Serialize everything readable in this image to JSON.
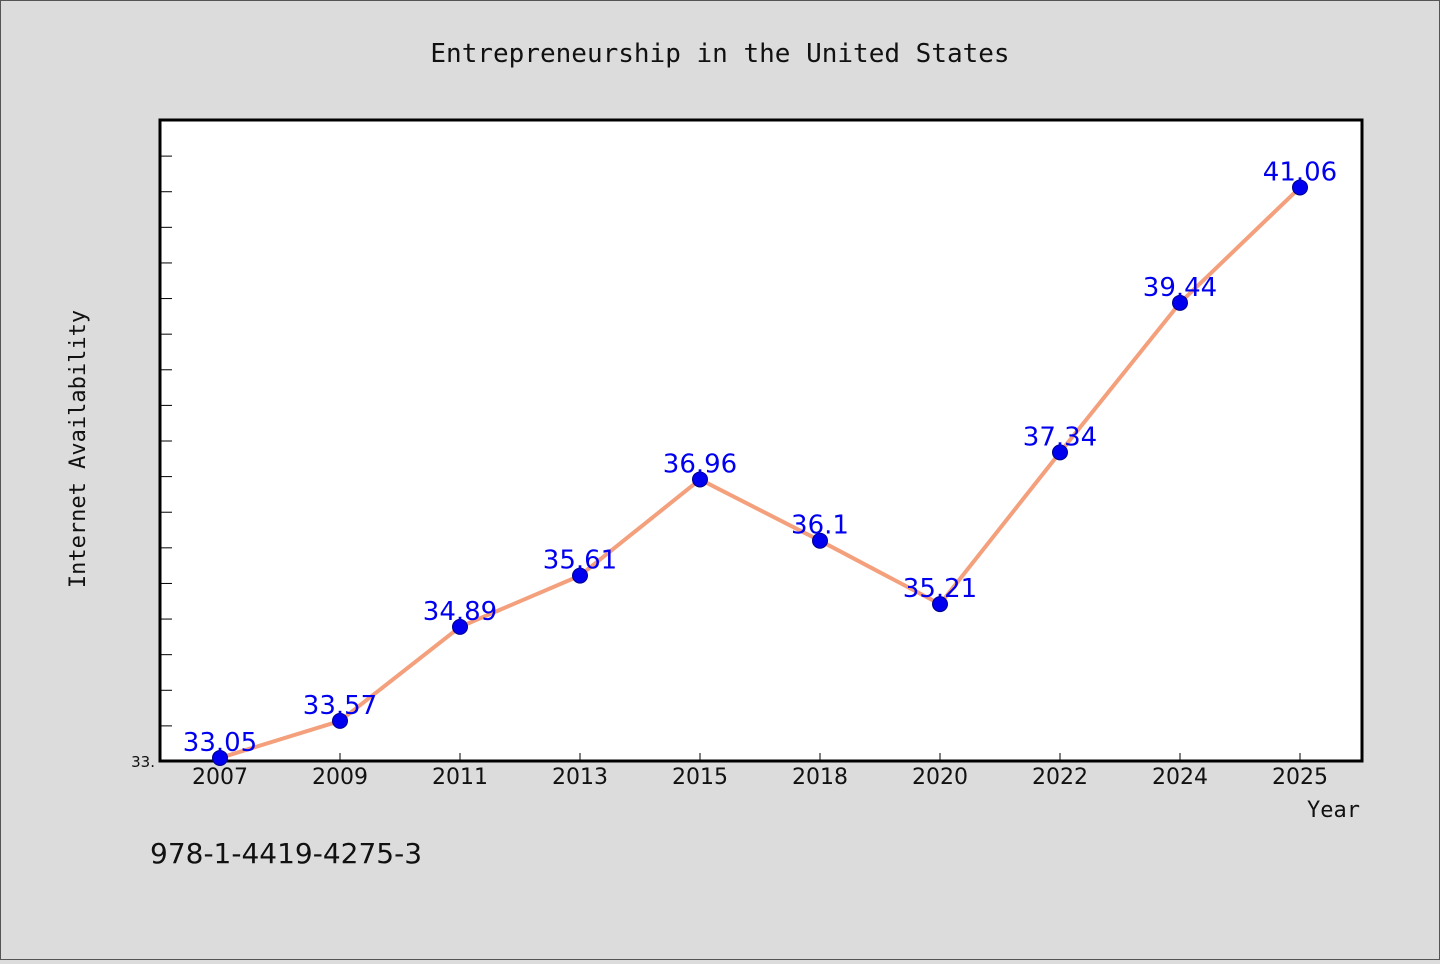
{
  "chart_data": {
    "type": "line",
    "title": "Entrepreneurship in the United States",
    "xlabel": "Year",
    "ylabel": "Internet Availability",
    "categories": [
      "2007",
      "2009",
      "2011",
      "2013",
      "2015",
      "2018",
      "2020",
      "2022",
      "2024",
      "2025"
    ],
    "series": [
      {
        "values": [
          33.05,
          33.57,
          34.89,
          35.61,
          36.96,
          36.1,
          35.21,
          37.34,
          39.44,
          41.06
        ]
      }
    ],
    "data_labels": [
      "33.05",
      "33.57",
      "34.89",
      "35.61",
      "36.96",
      "36.1",
      "35.21",
      "37.34",
      "39.44",
      "41.06"
    ],
    "ylim": [
      33.0,
      42.0
    ],
    "ytick_labels": [
      "33."
    ],
    "grid": false,
    "legend": "none",
    "colors": {
      "line": "#f4a07c",
      "marker": "#0000ee",
      "label": "#0000ee",
      "plot_background": "#ffffff",
      "figure_background": "#dcdcdc"
    }
  },
  "footnote": "978-1-4419-4275-3"
}
